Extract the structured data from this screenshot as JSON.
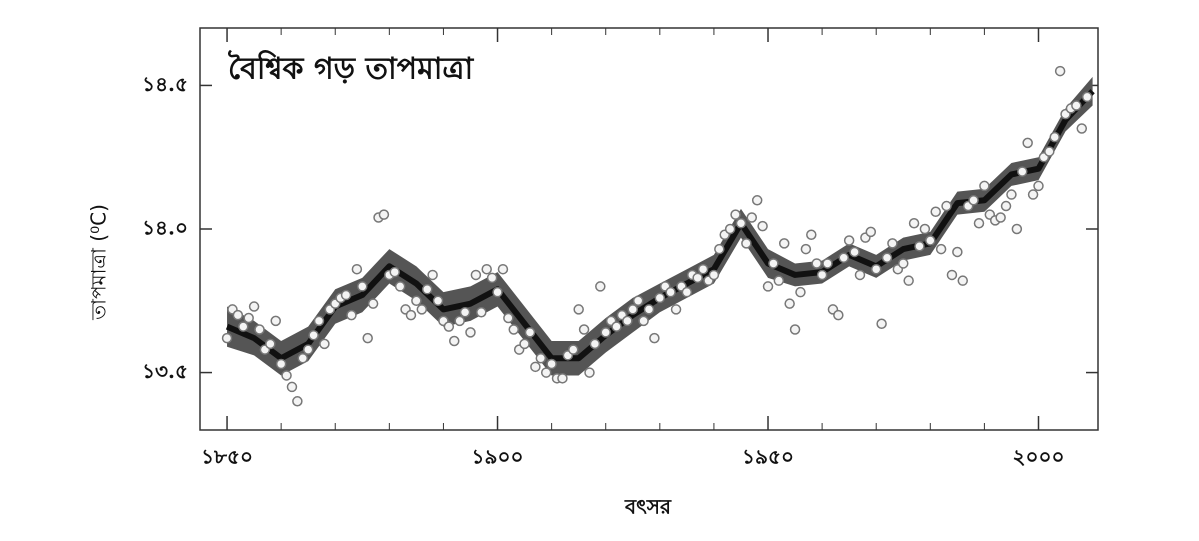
{
  "chart_data": {
    "type": "scatter-smooth",
    "title": "বৈশ্বিক গড় তাপমাত্রা",
    "x_label": "বৎসর",
    "y_label": "তাপমাত্রা (⁰C)",
    "xlim": [
      1845,
      2011
    ],
    "ylim": [
      13.3,
      14.7
    ],
    "xticks": [
      {
        "value": 1850,
        "label": "১৮৫০"
      },
      {
        "value": 1900,
        "label": "১৯০০"
      },
      {
        "value": 1950,
        "label": "১৯৫০"
      },
      {
        "value": 2000,
        "label": "২০০০"
      }
    ],
    "xminorticks": [
      1860,
      1870,
      1880,
      1890,
      1910,
      1920,
      1930,
      1940,
      1960,
      1970,
      1980,
      1990
    ],
    "yticks": [
      {
        "value": 13.5,
        "label": "১৩.৫"
      },
      {
        "value": 14.0,
        "label": "১৪.০"
      },
      {
        "value": 14.5,
        "label": "১৪.৫"
      }
    ],
    "series": [
      {
        "kind": "points",
        "color": "#777777",
        "start": 1850,
        "values": [
          13.62,
          13.72,
          13.7,
          13.66,
          13.69,
          13.73,
          13.65,
          13.58,
          13.6,
          13.68,
          13.53,
          13.49,
          13.45,
          13.4,
          13.55,
          13.58,
          13.63,
          13.68,
          13.6,
          13.72,
          13.74,
          13.76,
          13.77,
          13.7,
          13.86,
          13.8,
          13.62,
          13.74,
          14.04,
          14.05,
          13.84,
          13.85,
          13.8,
          13.72,
          13.7,
          13.75,
          13.72,
          13.79,
          13.84,
          13.75,
          13.68,
          13.66,
          13.61,
          13.68,
          13.71,
          13.64,
          13.84,
          13.71,
          13.86,
          13.83,
          13.78,
          13.86,
          13.69,
          13.65,
          13.58,
          13.6,
          13.64,
          13.52,
          13.55,
          13.5,
          13.53,
          13.48,
          13.48,
          13.56,
          13.58,
          13.72,
          13.65,
          13.5,
          13.6,
          13.8,
          13.64,
          13.68,
          13.66,
          13.7,
          13.68,
          13.72,
          13.75,
          13.68,
          13.72,
          13.62,
          13.76,
          13.8,
          13.78,
          13.72,
          13.8,
          13.78,
          13.84,
          13.83,
          13.86,
          13.82,
          13.84,
          13.93,
          13.98,
          14.0,
          14.05,
          14.02,
          13.95,
          14.04,
          14.1,
          14.01,
          13.8,
          13.88,
          13.82,
          13.95,
          13.74,
          13.65,
          13.78,
          13.93,
          13.98,
          13.88,
          13.84,
          13.88,
          13.72,
          13.7,
          13.9,
          13.96,
          13.92,
          13.84,
          13.97,
          13.99,
          13.86,
          13.67,
          13.9,
          13.95,
          13.86,
          13.88,
          13.82,
          14.02,
          13.94,
          14.0,
          13.96,
          14.06,
          13.93,
          14.08,
          13.84,
          13.92,
          13.82,
          14.08,
          14.1,
          14.02,
          14.15,
          14.05,
          14.03,
          14.04,
          14.08,
          14.12,
          14.0,
          14.2,
          14.3,
          14.12,
          14.15,
          14.25,
          14.27,
          14.32,
          14.55,
          14.4,
          14.42,
          14.43,
          14.35,
          14.46
        ]
      },
      {
        "kind": "smooth",
        "color": "#111111",
        "band_color": "#555555",
        "x": [
          1850,
          1855,
          1860,
          1865,
          1870,
          1875,
          1880,
          1885,
          1890,
          1895,
          1900,
          1905,
          1910,
          1915,
          1920,
          1925,
          1930,
          1935,
          1940,
          1945,
          1950,
          1955,
          1960,
          1965,
          1970,
          1975,
          1980,
          1985,
          1990,
          1995,
          2000,
          2005,
          2010
        ],
        "values": [
          13.66,
          13.62,
          13.55,
          13.6,
          13.73,
          13.77,
          13.87,
          13.81,
          13.72,
          13.74,
          13.79,
          13.67,
          13.55,
          13.55,
          13.63,
          13.7,
          13.76,
          13.81,
          13.86,
          14.02,
          13.88,
          13.84,
          13.85,
          13.91,
          13.87,
          13.93,
          13.95,
          14.09,
          14.1,
          14.19,
          14.21,
          14.38,
          14.48
        ],
        "band_lower": [
          13.59,
          13.56,
          13.49,
          13.54,
          13.67,
          13.71,
          13.81,
          13.75,
          13.66,
          13.68,
          13.73,
          13.61,
          13.49,
          13.49,
          13.57,
          13.64,
          13.71,
          13.76,
          13.81,
          13.97,
          13.83,
          13.8,
          13.81,
          13.87,
          13.83,
          13.89,
          13.91,
          14.05,
          14.06,
          14.15,
          14.17,
          14.34,
          14.43
        ],
        "band_upper": [
          13.73,
          13.68,
          13.61,
          13.66,
          13.79,
          13.83,
          13.93,
          13.87,
          13.78,
          13.8,
          13.85,
          13.73,
          13.61,
          13.61,
          13.69,
          13.76,
          13.81,
          13.86,
          13.91,
          14.07,
          13.93,
          13.88,
          13.89,
          13.95,
          13.91,
          13.97,
          13.99,
          14.13,
          14.14,
          14.23,
          14.25,
          14.42,
          14.53
        ]
      }
    ]
  }
}
